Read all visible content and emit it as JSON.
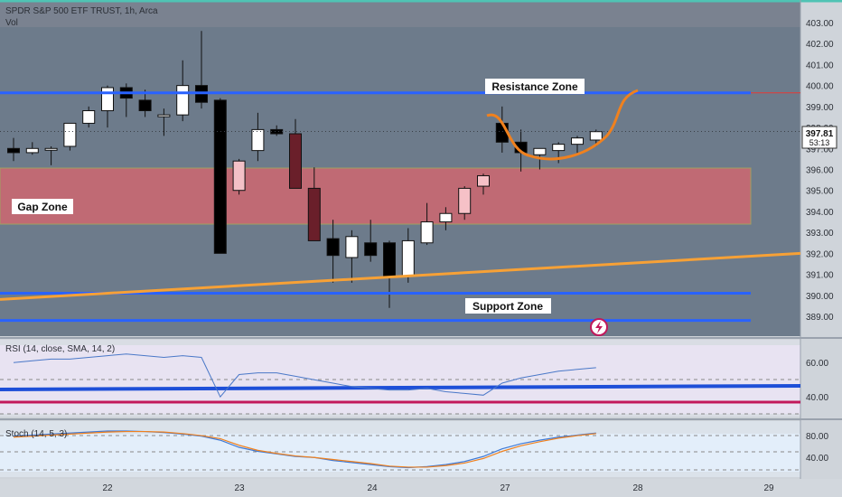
{
  "header": {
    "symbol_line": "SPDR S&P 500 ETF TRUST, 1h, Arca",
    "vol_label": "Vol"
  },
  "price_axis": {
    "ticks": [
      "403.00",
      "402.00",
      "401.00",
      "400.00",
      "399.00",
      "398.00",
      "397.00",
      "396.00",
      "395.00",
      "394.00",
      "393.00",
      "392.00",
      "391.00",
      "390.00",
      "389.00"
    ],
    "last_price": "397.81",
    "countdown": "53:13"
  },
  "annotations": {
    "resistance": "Resistance Zone",
    "gap": "Gap Zone",
    "support": "Support Zone"
  },
  "rsi": {
    "label": "RSI (14, close, SMA, 14, 2)",
    "ticks": [
      "60.00",
      "40.00"
    ]
  },
  "stoch": {
    "label": "Stoch (14, 5, 3)",
    "ticks": [
      "80.00",
      "40.00"
    ]
  },
  "time_axis": {
    "labels": [
      "22",
      "23",
      "24",
      "27",
      "28",
      "29"
    ]
  },
  "colors": {
    "up_candle": "#ffffff",
    "down_candle": "#000000",
    "resistance_line": "#2962ff",
    "support_line": "#2962ff",
    "trend_line": "#f7a136",
    "gap_zone": "#e05567",
    "curve": "#f0811e",
    "rsi_level": "#c2185b",
    "rsi_ma": "#1e4fd8"
  },
  "chart_data": {
    "type": "candlestick",
    "price_range": [
      388.6,
      403.3
    ],
    "candles": [
      {
        "o": 397.0,
        "h": 397.5,
        "l": 396.4,
        "c": 396.8
      },
      {
        "o": 396.8,
        "h": 397.3,
        "l": 396.7,
        "c": 397.0
      },
      {
        "o": 397.0,
        "h": 397.1,
        "l": 396.2,
        "c": 397.0
      },
      {
        "o": 397.1,
        "h": 398.2,
        "l": 396.9,
        "c": 398.2
      },
      {
        "o": 398.2,
        "h": 399.0,
        "l": 398.0,
        "c": 398.8
      },
      {
        "o": 398.8,
        "h": 400.0,
        "l": 398.0,
        "c": 399.9
      },
      {
        "o": 399.9,
        "h": 400.1,
        "l": 398.5,
        "c": 399.4
      },
      {
        "o": 399.3,
        "h": 399.8,
        "l": 398.5,
        "c": 398.8
      },
      {
        "o": 398.6,
        "h": 398.9,
        "l": 397.6,
        "c": 398.6
      },
      {
        "o": 398.6,
        "h": 401.2,
        "l": 398.3,
        "c": 400.0
      },
      {
        "o": 400.0,
        "h": 402.6,
        "l": 398.9,
        "c": 399.2
      },
      {
        "o": 399.3,
        "h": 399.4,
        "l": 392.0,
        "c": 392.0
      },
      {
        "o": 395.0,
        "h": 396.5,
        "l": 394.8,
        "c": 396.4
      },
      {
        "o": 396.9,
        "h": 398.7,
        "l": 396.4,
        "c": 397.9
      },
      {
        "o": 397.9,
        "h": 398.1,
        "l": 397.6,
        "c": 397.7
      },
      {
        "o": 397.7,
        "h": 398.4,
        "l": 395.1,
        "c": 395.1
      },
      {
        "o": 395.1,
        "h": 396.1,
        "l": 392.6,
        "c": 392.6
      },
      {
        "o": 392.7,
        "h": 393.6,
        "l": 390.6,
        "c": 391.9
      },
      {
        "o": 391.8,
        "h": 393.1,
        "l": 390.6,
        "c": 392.8
      },
      {
        "o": 392.5,
        "h": 393.6,
        "l": 391.6,
        "c": 391.9
      },
      {
        "o": 392.5,
        "h": 392.6,
        "l": 389.4,
        "c": 390.9
      },
      {
        "o": 390.9,
        "h": 393.2,
        "l": 390.6,
        "c": 392.6
      },
      {
        "o": 392.5,
        "h": 394.4,
        "l": 392.4,
        "c": 393.5
      },
      {
        "o": 393.5,
        "h": 394.2,
        "l": 393.1,
        "c": 393.9
      },
      {
        "o": 393.9,
        "h": 395.2,
        "l": 393.6,
        "c": 395.1
      },
      {
        "o": 395.2,
        "h": 395.8,
        "l": 394.8,
        "c": 395.7
      },
      {
        "o": 398.2,
        "h": 399.0,
        "l": 396.8,
        "c": 397.3
      },
      {
        "o": 397.3,
        "h": 397.9,
        "l": 395.9,
        "c": 396.8
      },
      {
        "o": 396.7,
        "h": 397.0,
        "l": 396.0,
        "c": 397.0
      },
      {
        "o": 396.9,
        "h": 397.3,
        "l": 396.3,
        "c": 397.2
      },
      {
        "o": 397.2,
        "h": 397.6,
        "l": 396.7,
        "c": 397.5
      },
      {
        "o": 397.4,
        "h": 397.9,
        "l": 397.1,
        "c": 397.8
      }
    ],
    "horizontal_lines": [
      {
        "name": "resistance",
        "price": 399.65
      },
      {
        "name": "support",
        "price": 390.1
      },
      {
        "name": "support",
        "price": 388.8
      }
    ],
    "gap_zone": [
      393.5,
      396.0
    ],
    "trend_line": {
      "from": 389.8,
      "to": 392.0
    },
    "rsi_series": [
      62,
      63,
      64,
      64,
      65,
      66,
      67,
      66,
      65,
      66,
      65,
      42,
      55,
      56,
      56,
      54,
      52,
      50,
      48,
      47,
      46,
      46,
      47,
      45,
      44,
      43,
      50,
      53,
      55,
      57,
      58,
      59
    ],
    "stoch_k": [
      70,
      72,
      74,
      76,
      78,
      80,
      80,
      79,
      77,
      74,
      70,
      62,
      48,
      40,
      35,
      30,
      28,
      22,
      18,
      14,
      10,
      8,
      10,
      14,
      20,
      30,
      45,
      55,
      62,
      68,
      72,
      76
    ],
    "stoch_d": [
      68,
      70,
      72,
      74,
      76,
      78,
      79,
      79,
      78,
      75,
      71,
      65,
      52,
      42,
      36,
      31,
      28,
      24,
      20,
      16,
      11,
      9,
      9,
      12,
      17,
      26,
      40,
      51,
      59,
      66,
      71,
      75
    ]
  }
}
